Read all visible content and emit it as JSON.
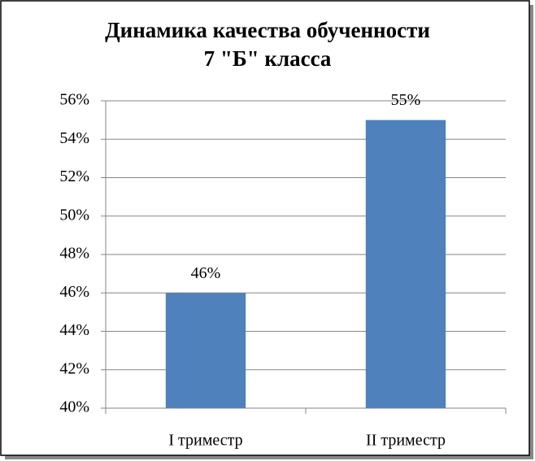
{
  "chart_data": {
    "type": "bar",
    "title": [
      "Динамика качества обученности",
      "7 \"Б\" класса"
    ],
    "categories": [
      "I триместр",
      "II триместр"
    ],
    "values": [
      46,
      55
    ],
    "value_labels": [
      "46%",
      "55%"
    ],
    "color": "#4f81bd",
    "ylim": [
      40,
      56
    ],
    "yticks": [
      {
        "value": 40,
        "label": "40%"
      },
      {
        "value": 42,
        "label": "42%"
      },
      {
        "value": 44,
        "label": "44%"
      },
      {
        "value": 46,
        "label": "46%"
      },
      {
        "value": 48,
        "label": "48%"
      },
      {
        "value": 50,
        "label": "50%"
      },
      {
        "value": 52,
        "label": "52%"
      },
      {
        "value": 54,
        "label": "54%"
      },
      {
        "value": 56,
        "label": "56%"
      }
    ],
    "grid": true
  }
}
